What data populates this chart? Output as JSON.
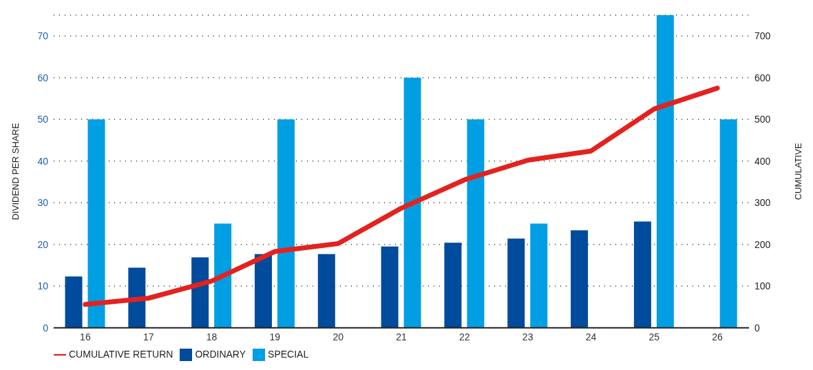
{
  "chart_data": {
    "type": "bar",
    "ylabel": "DIVIDEND PER SHARE",
    "y2label": "CUMULATIVE",
    "categories": [
      "16",
      "17",
      "18",
      "19",
      "20",
      "21",
      "22",
      "23",
      "24",
      "25",
      "26"
    ],
    "series": [
      {
        "name": "ORDINARY",
        "color": "#004b9b",
        "values": [
          12.3,
          14.4,
          16.9,
          17.7,
          17.7,
          19.5,
          20.4,
          21.4,
          23.4,
          25.5,
          null
        ]
      },
      {
        "name": "SPECIAL",
        "color": "#009fe3",
        "values": [
          50,
          null,
          25,
          50,
          null,
          60,
          50,
          25,
          null,
          75,
          50
        ]
      },
      {
        "name": "CUMULATIVE RETURN",
        "type": "line",
        "axis": "y2",
        "color": "#e3221f",
        "values": [
          56,
          71,
          112,
          183,
          202,
          287,
          355,
          402,
          424,
          525,
          575
        ]
      }
    ],
    "ylim": [
      0,
      75
    ],
    "yticks": [
      0,
      10,
      20,
      30,
      40,
      50,
      60,
      70
    ],
    "y2lim": [
      0,
      750
    ],
    "y2ticks": [
      0,
      100,
      200,
      300,
      400,
      500,
      600,
      700
    ],
    "grid": "y",
    "legend": "bottom left"
  }
}
